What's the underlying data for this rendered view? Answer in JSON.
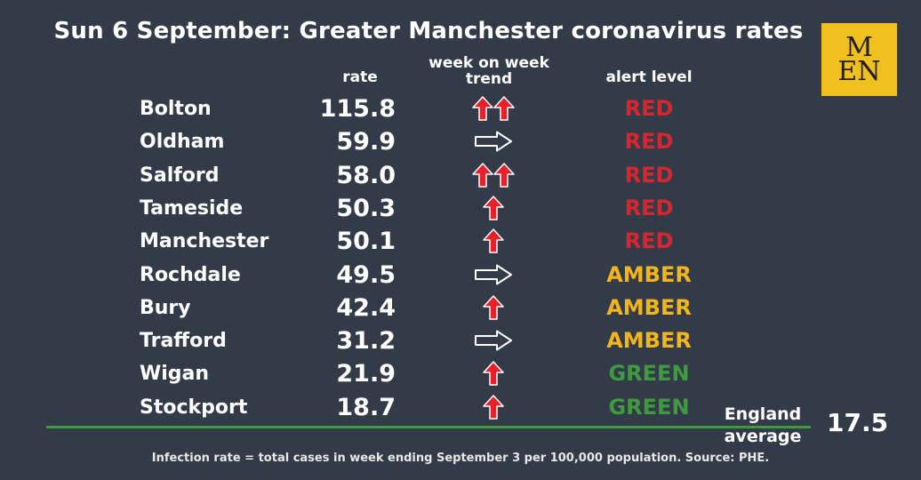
{
  "title": "Sun 6 September: Greater Manchester coronavirus rates",
  "logo": {
    "line1": "M",
    "line2": "EN"
  },
  "columns": {
    "rate": "rate",
    "trend_line1": "week on week",
    "trend_line2": "trend",
    "alert": "alert level"
  },
  "colors": {
    "background": "#333a48",
    "red": "#d8262e",
    "amber": "#f2b61d",
    "green": "#3f9a3f",
    "arrow_red": "#e8202a"
  },
  "rows": [
    {
      "name": "Bolton",
      "rate": "115.8",
      "trend": "double-up-arrow",
      "alert": "RED",
      "alert_color": "#d8262e"
    },
    {
      "name": "Oldham",
      "rate": "59.9",
      "trend": "right-arrow",
      "alert": "RED",
      "alert_color": "#d8262e"
    },
    {
      "name": "Salford",
      "rate": "58.0",
      "trend": "double-up-arrow",
      "alert": "RED",
      "alert_color": "#d8262e"
    },
    {
      "name": "Tameside",
      "rate": "50.3",
      "trend": "up-arrow",
      "alert": "RED",
      "alert_color": "#d8262e"
    },
    {
      "name": "Manchester",
      "rate": "50.1",
      "trend": "up-arrow",
      "alert": "RED",
      "alert_color": "#d8262e"
    },
    {
      "name": "Rochdale",
      "rate": "49.5",
      "trend": "right-arrow",
      "alert": "AMBER",
      "alert_color": "#f2b61d"
    },
    {
      "name": "Bury",
      "rate": "42.4",
      "trend": "up-arrow",
      "alert": "AMBER",
      "alert_color": "#f2b61d"
    },
    {
      "name": "Trafford",
      "rate": "31.2",
      "trend": "right-arrow",
      "alert": "AMBER",
      "alert_color": "#f2b61d"
    },
    {
      "name": "Wigan",
      "rate": "21.9",
      "trend": "up-arrow",
      "alert": "GREEN",
      "alert_color": "#3f9a3f"
    },
    {
      "name": "Stockport",
      "rate": "18.7",
      "trend": "up-arrow",
      "alert": "GREEN",
      "alert_color": "#3f9a3f"
    }
  ],
  "england": {
    "label_line1": "England",
    "label_line2": "average",
    "value": "17.5"
  },
  "footnote": "Infection rate = total cases in week ending September 3 per 100,000 population. Source: PHE."
}
